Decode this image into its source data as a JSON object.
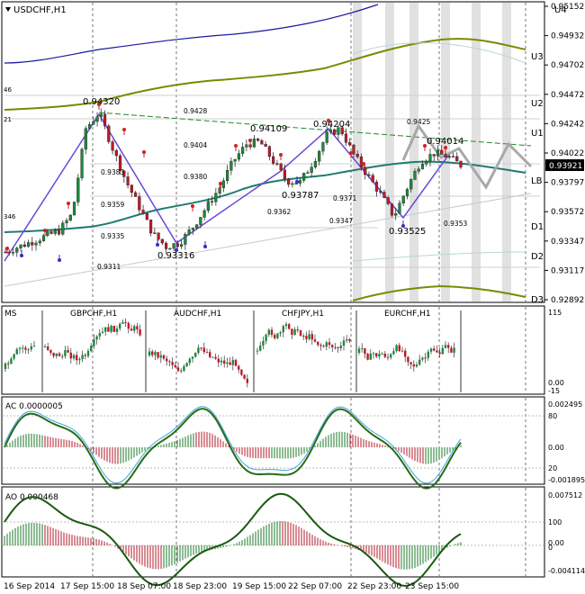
{
  "window": {
    "title": "USDCHF,H1",
    "current_price": "0.93921"
  },
  "levels": {
    "u4": "U4",
    "u3": "U3",
    "u2": "U2",
    "u1": "U1",
    "lb": "LB",
    "d1": "D1",
    "d2": "D2",
    "d3": "D3"
  },
  "edge_labels": {
    "top": "46",
    "mid": "21",
    "low": "346"
  },
  "price_axis": [
    "0.95152",
    "0.94932",
    "0.94702",
    "0.94472",
    "0.94242",
    "0.94022",
    "0.93797",
    "0.93572",
    "0.93347",
    "0.93117",
    "0.92892"
  ],
  "annotations": {
    "a1": "0.94320",
    "a2": "0.93316",
    "a3": "0.94109",
    "a4": "0.93787",
    "a5": "0.94204",
    "a6": "0.93525",
    "a7": "0.94014",
    "g1": "0.9428",
    "g2": "0.9404",
    "g3": "0.9383",
    "g4": "0.9380",
    "g5": "0.9359",
    "g6": "0.9335",
    "g7": "0.9311",
    "g8": "0.9362",
    "g9": "0.9371",
    "g10": "0.9347",
    "g11": "0.9425",
    "g12": "0.9353"
  },
  "sub_panel": {
    "title": "MS",
    "pairs": [
      "GBPCHF,H1",
      "AUDCHF,H1",
      "CHFJPY,H1",
      "EURCHF,H1"
    ],
    "scale": [
      "115",
      "0.00",
      "-15"
    ]
  },
  "ac": {
    "title": "AC 0.0000005",
    "scale": [
      "0.002495",
      "80",
      "0.00",
      "20",
      "-0.001895"
    ]
  },
  "ao": {
    "title": "AO 0.000468",
    "scale": [
      "0.007512",
      "100",
      "0.00",
      "0",
      "-0.004114"
    ]
  },
  "time_axis": [
    "16 Sep 2014",
    "17 Sep 15:00",
    "18 Sep 07:00",
    "18 Sep 23:00",
    "19 Sep 15:00",
    "22 Sep 07:00",
    "22 Sep 23:00",
    "23 Sep 15:00"
  ],
  "chart_data": {
    "type": "candlestick",
    "symbol": "USDCHF,H1",
    "ylim": [
      0.9289,
      0.9515
    ],
    "grid": true,
    "series": [
      {
        "name": "USDCHF",
        "values": [
          0.9326,
          0.933,
          0.9334,
          0.9338,
          0.9342,
          0.9355,
          0.942,
          0.9432,
          0.9405,
          0.938,
          0.936,
          0.934,
          0.933,
          0.9333,
          0.9345,
          0.936,
          0.9375,
          0.9395,
          0.9408,
          0.941,
          0.9395,
          0.938,
          0.9379,
          0.9395,
          0.9415,
          0.942,
          0.94,
          0.9385,
          0.937,
          0.9353,
          0.9375,
          0.9395,
          0.9401,
          0.9399,
          0.9392
        ]
      }
    ]
  }
}
